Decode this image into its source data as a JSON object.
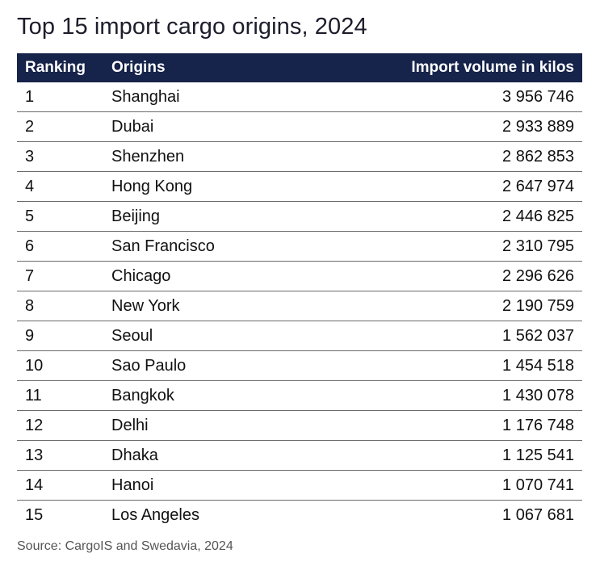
{
  "chart_data": {
    "type": "table",
    "title": "Top 15 import cargo origins, 2024",
    "columns": [
      "Ranking",
      "Origins",
      "Import volume in kilos"
    ],
    "rows": [
      {
        "rank": "1",
        "origin": "Shanghai",
        "volume": "3 956 746"
      },
      {
        "rank": "2",
        "origin": "Dubai",
        "volume": "2 933 889"
      },
      {
        "rank": "3",
        "origin": "Shenzhen",
        "volume": "2 862 853"
      },
      {
        "rank": "4",
        "origin": "Hong Kong",
        "volume": "2 647 974"
      },
      {
        "rank": "5",
        "origin": "Beijing",
        "volume": "2 446 825"
      },
      {
        "rank": "6",
        "origin": "San Francisco",
        "volume": "2 310 795"
      },
      {
        "rank": "7",
        "origin": "Chicago",
        "volume": "2 296 626"
      },
      {
        "rank": "8",
        "origin": "New York",
        "volume": "2 190 759"
      },
      {
        "rank": "9",
        "origin": "Seoul",
        "volume": "1 562 037"
      },
      {
        "rank": "10",
        "origin": "Sao Paulo",
        "volume": "1 454 518"
      },
      {
        "rank": "11",
        "origin": "Bangkok",
        "volume": "1 430 078"
      },
      {
        "rank": "12",
        "origin": "Delhi",
        "volume": "1 176 748"
      },
      {
        "rank": "13",
        "origin": "Dhaka",
        "volume": "1 125 541"
      },
      {
        "rank": "14",
        "origin": "Hanoi",
        "volume": "1 070 741"
      },
      {
        "rank": "15",
        "origin": "Los Angeles",
        "volume": "1 067 681"
      }
    ],
    "source": "Source: CargoIS and Swedavia, 2024"
  },
  "colors": {
    "header_background": "#16234a",
    "header_text": "#ffffff",
    "row_divider": "#6b6b6b"
  }
}
